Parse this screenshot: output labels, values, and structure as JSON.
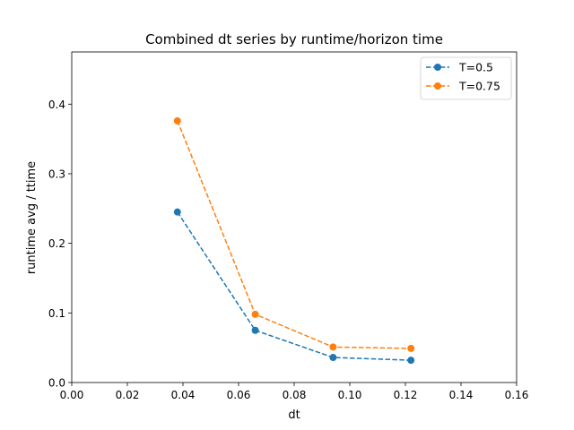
{
  "chart_data": {
    "type": "line",
    "title": "Combined dt series by runtime/horizon time",
    "xlabel": "dt",
    "ylabel": "runtime avg / ttime",
    "xlim": [
      0.0,
      0.16
    ],
    "ylim": [
      0.0,
      0.475
    ],
    "xticks": [
      "0.00",
      "0.02",
      "0.04",
      "0.06",
      "0.08",
      "0.10",
      "0.12",
      "0.14",
      "0.16"
    ],
    "yticks": [
      "0.0",
      "0.1",
      "0.2",
      "0.3",
      "0.4"
    ],
    "grid": false,
    "legend_position": "top-right",
    "x": [
      0.038,
      0.066,
      0.094,
      0.122
    ],
    "series": [
      {
        "name": "T=0.5",
        "color": "#1f77b4",
        "values": [
          0.245,
          0.075,
          0.036,
          0.032
        ]
      },
      {
        "name": "T=0.75",
        "color": "#ff7f0e",
        "values": [
          0.376,
          0.098,
          0.051,
          0.049
        ]
      }
    ]
  }
}
